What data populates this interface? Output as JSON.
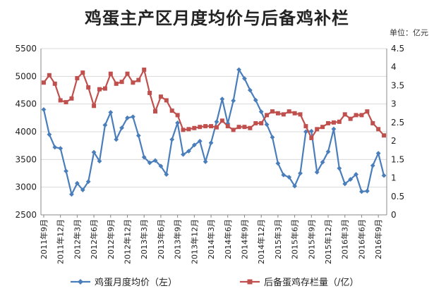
{
  "chart_data": {
    "type": "line",
    "title": "鸡蛋主产区月度均价与后备鸡补栏",
    "unit_label": "单位：亿元",
    "x_labels": [
      "2011年9月",
      "2011年12月",
      "2012年3月",
      "2012年6月",
      "2012年9月",
      "2012年12月",
      "2013年3月",
      "2013年6月",
      "2013年9月",
      "2013年12月",
      "2014年3月",
      "2014年6月",
      "2014年9月",
      "2014年12月",
      "2015年3月",
      "2015年6月",
      "2015年9月",
      "2015年12月",
      "2016年3月",
      "2016年6月",
      "2016年9月"
    ],
    "y_left": {
      "min": 2500,
      "max": 5500,
      "step": 500,
      "ticks": [
        "2500",
        "3000",
        "3500",
        "4000",
        "4500",
        "5000",
        "5500"
      ]
    },
    "y_right": {
      "min": 0,
      "max": 4.5,
      "step": 0.5,
      "ticks": [
        "0",
        "0.5",
        "1",
        "1.5",
        "2",
        "2.5",
        "3",
        "3.5",
        "4",
        "4.5"
      ]
    },
    "grid": true,
    "legend_position": "bottom",
    "series": [
      {
        "name": "鸡蛋月度均价（左）",
        "axis": "left",
        "color": "#4a7ebb",
        "marker": "diamond",
        "values": [
          4400,
          3950,
          3720,
          3700,
          3290,
          2870,
          3070,
          2950,
          3100,
          3630,
          3470,
          4120,
          4350,
          3860,
          4070,
          4250,
          4270,
          3930,
          3540,
          3440,
          3480,
          3380,
          3230,
          3860,
          4160,
          3590,
          3650,
          3760,
          3830,
          3460,
          3800,
          4180,
          4590,
          4150,
          4560,
          5120,
          4960,
          4750,
          4570,
          4360,
          4130,
          3900,
          3430,
          3220,
          3180,
          3020,
          3250,
          4000,
          4010,
          3270,
          3450,
          3640,
          4050,
          3340,
          3060,
          3140,
          3230,
          2920,
          2930,
          3390,
          3610,
          3210
        ]
      },
      {
        "name": "后备蛋鸡存栏量（/亿）",
        "axis": "right",
        "color": "#c0504d",
        "marker": "square",
        "values": [
          3.58,
          3.78,
          3.55,
          3.1,
          3.05,
          3.15,
          3.7,
          3.85,
          3.45,
          2.95,
          3.4,
          3.42,
          3.82,
          3.55,
          3.6,
          3.82,
          3.58,
          3.65,
          3.93,
          3.3,
          2.8,
          3.2,
          3.1,
          2.82,
          2.7,
          2.3,
          2.32,
          2.35,
          2.38,
          2.4,
          2.4,
          2.37,
          2.55,
          2.4,
          2.3,
          2.38,
          2.38,
          2.35,
          2.48,
          2.48,
          2.7,
          2.8,
          2.75,
          2.72,
          2.8,
          2.75,
          2.72,
          2.4,
          2.08,
          2.32,
          2.38,
          2.48,
          2.5,
          2.52,
          2.72,
          2.6,
          2.7,
          2.7,
          2.8,
          2.48,
          2.32,
          2.15
        ]
      }
    ]
  }
}
